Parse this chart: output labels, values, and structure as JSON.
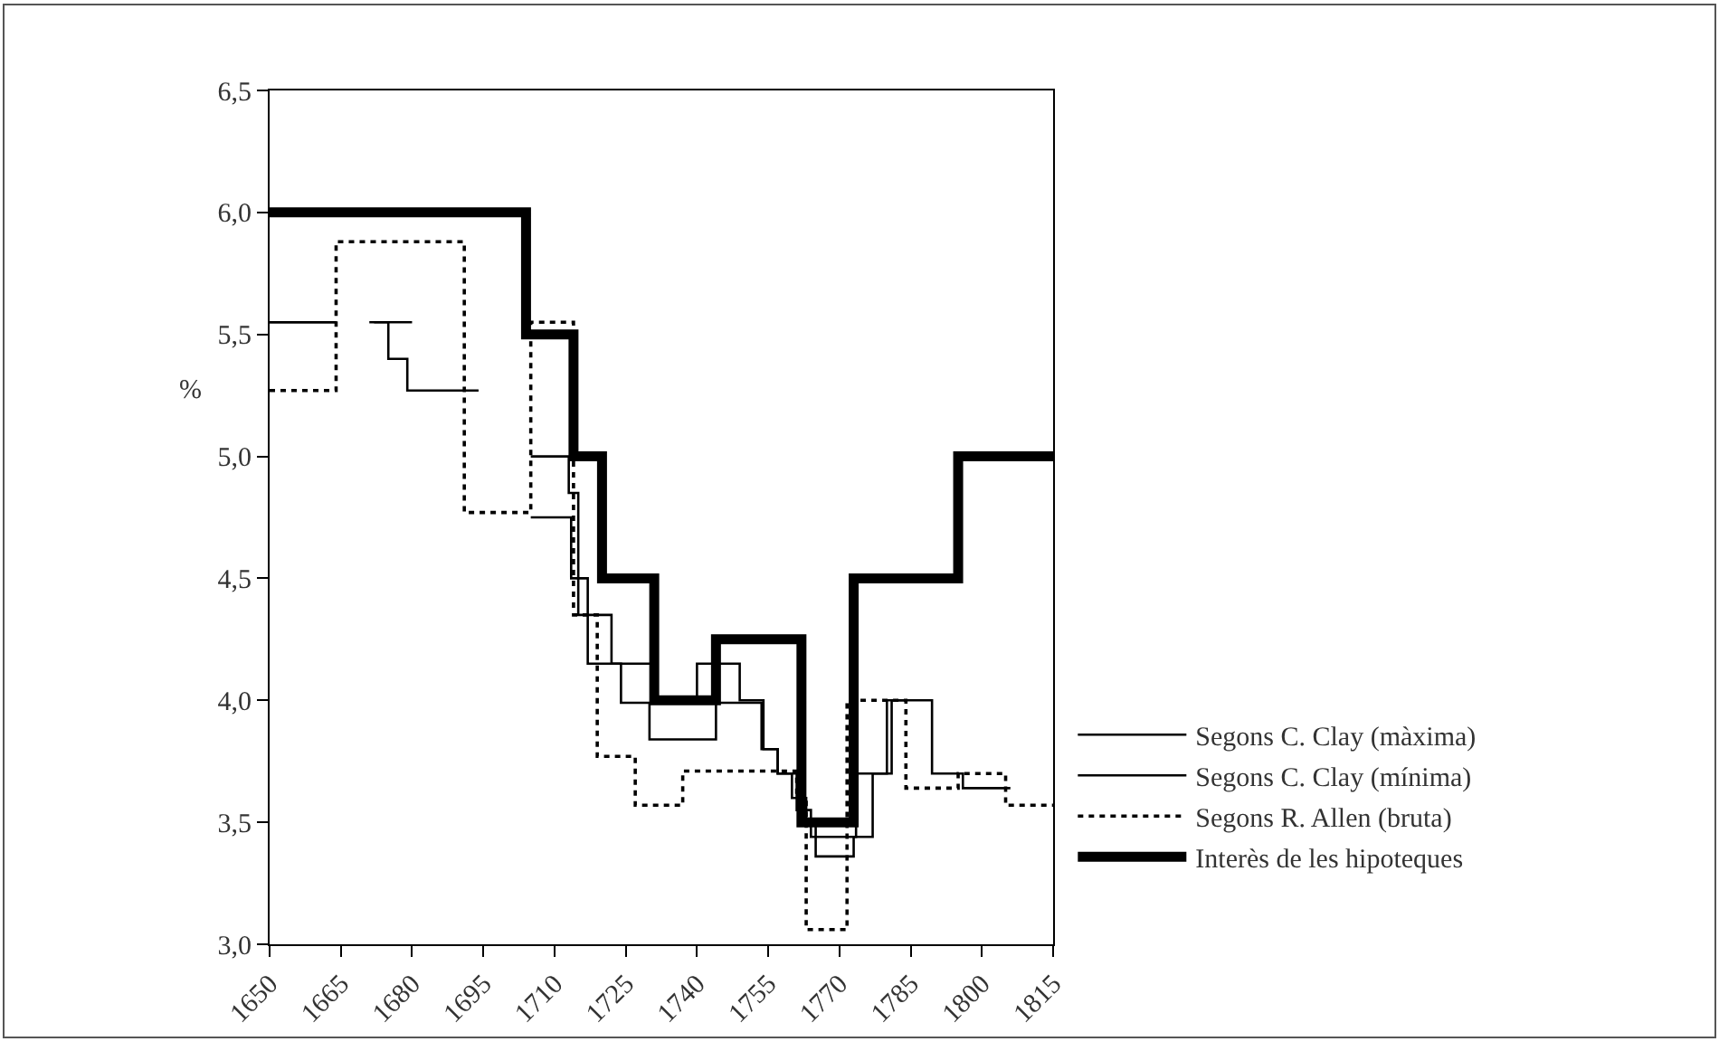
{
  "chart_data": {
    "type": "step",
    "ylabel": "%",
    "xlim": [
      1650,
      1815
    ],
    "xticks": [
      1650,
      1665,
      1680,
      1695,
      1710,
      1725,
      1740,
      1755,
      1770,
      1785,
      1800,
      1815
    ],
    "ylim": [
      3.0,
      6.5
    ],
    "yticks": [
      {
        "value": 3.0,
        "label": "3,0"
      },
      {
        "value": 3.5,
        "label": "3,5"
      },
      {
        "value": 4.0,
        "label": "4,0"
      },
      {
        "value": 4.5,
        "label": "4,5"
      },
      {
        "value": 5.0,
        "label": "5,0"
      },
      {
        "value": 5.5,
        "label": "5,5"
      },
      {
        "value": 6.0,
        "label": "6,0"
      },
      {
        "value": 6.5,
        "label": "6,5"
      }
    ],
    "legend": "right",
    "marker": "none",
    "series": [
      {
        "name": "Segons C. Clay (màxima)",
        "color": "#000000",
        "line_style": "solid",
        "x": [
          1650,
          1664,
          1667,
          1671,
          1680,
          1690,
          1705,
          1713,
          1715,
          1722,
          1731,
          1740,
          1749,
          1754,
          1757,
          1761,
          1764,
          1773.5,
          1780,
          1789.5,
          1796,
          1806
        ],
        "values": [
          5.55,
          5.55,
          null,
          5.55,
          5.55,
          null,
          5.0,
          4.85,
          4.35,
          4.15,
          3.99,
          4.15,
          4.0,
          3.8,
          3.7,
          3.55,
          3.44,
          3.7,
          4.0,
          3.7,
          3.64,
          3.64
        ]
      },
      {
        "name": "Segons C. Clay (mínima)",
        "color": "#000000",
        "line_style": "solid",
        "x": [
          1650,
          1664,
          1667,
          1672,
          1675,
          1679,
          1694,
          1698,
          1705,
          1713.5,
          1717,
          1724,
          1730,
          1744,
          1753.6,
          1757,
          1760,
          1763,
          1765,
          1773,
          1777,
          1781,
          1784
        ],
        "values": [
          5.55,
          5.55,
          null,
          5.55,
          5.4,
          5.27,
          5.27,
          null,
          4.75,
          4.5,
          4.15,
          3.99,
          3.84,
          3.99,
          3.8,
          3.7,
          3.6,
          3.5,
          3.36,
          3.44,
          3.7,
          4.0,
          4.0
        ]
      },
      {
        "name": "Segons R. Allen (bruta)",
        "color": "#000000",
        "line_style": "dotted",
        "x": [
          1650,
          1664,
          1691,
          1705,
          1714,
          1719,
          1727,
          1737,
          1761,
          1763,
          1771.6,
          1784,
          1795,
          1805,
          1815
        ],
        "values": [
          5.27,
          5.88,
          4.77,
          5.55,
          4.35,
          3.77,
          3.57,
          3.71,
          3.6,
          3.06,
          4.0,
          3.64,
          3.7,
          3.57,
          3.57
        ]
      },
      {
        "name": "Interès de les hipoteques",
        "color": "#000000",
        "line_style": "solid",
        "x": [
          1650,
          1704,
          1714,
          1720,
          1731,
          1744,
          1762,
          1773,
          1795,
          1815
        ],
        "values": [
          6.0,
          5.5,
          5.0,
          4.5,
          4.0,
          4.25,
          3.5,
          4.5,
          5.0,
          5.0
        ]
      }
    ]
  }
}
